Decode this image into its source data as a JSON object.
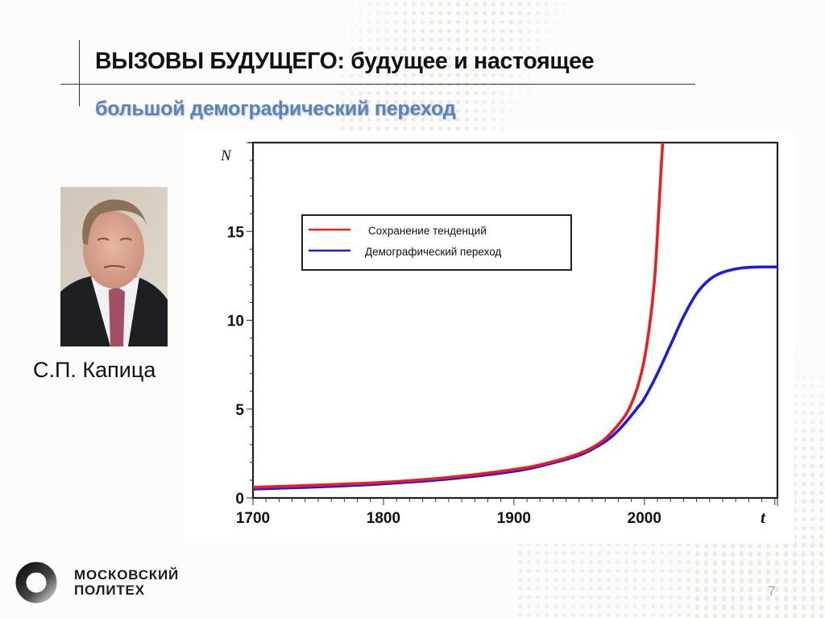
{
  "slide": {
    "title": "ВЫЗОВЫ БУДУЩЕГО: будущее и настоящее",
    "subtitle": "большой демографический переход",
    "portrait_caption": "С.П. Капица",
    "page_number": "7",
    "colors": {
      "title": "#111111",
      "subtitle": "#5a84b8",
      "series_red": "#ee1c1c",
      "series_blue": "#1a1aee"
    }
  },
  "logo": {
    "line1": "московский",
    "line2": "политех",
    "icon": "ring-logo-icon"
  },
  "chart_data": {
    "type": "line",
    "title": "",
    "xlabel": "t",
    "ylabel": "N",
    "xlim": [
      1700,
      2102
    ],
    "ylim": [
      0,
      20
    ],
    "x_ticks": [
      "1700",
      "1800",
      "1900",
      "2000"
    ],
    "y_ticks": [
      "0",
      "5",
      "10",
      "15"
    ],
    "grid": false,
    "legend_position": "upper-left-inside",
    "legend": [
      "Сохранение тенденций",
      "Демографический переход"
    ],
    "series": [
      {
        "name": "Сохранение тенденций",
        "color": "#ee1c1c",
        "x": [
          1700,
          1750,
          1800,
          1850,
          1900,
          1925,
          1950,
          1965,
          1975,
          1985,
          1990,
          1995,
          2000,
          2005,
          2008,
          2010,
          2012,
          2014
        ],
        "values": [
          0.6,
          0.72,
          0.88,
          1.15,
          1.6,
          1.95,
          2.5,
          3.05,
          3.7,
          4.6,
          5.3,
          6.3,
          7.8,
          10.3,
          12.5,
          14.8,
          17.5,
          20.0
        ]
      },
      {
        "name": "Демографический переход",
        "color": "#1a1aee",
        "x": [
          1700,
          1750,
          1800,
          1850,
          1900,
          1925,
          1950,
          1965,
          1975,
          1985,
          1995,
          2000,
          2010,
          2020,
          2030,
          2040,
          2050,
          2060,
          2075,
          2090,
          2102
        ],
        "values": [
          0.5,
          0.62,
          0.8,
          1.07,
          1.5,
          1.88,
          2.4,
          2.95,
          3.45,
          4.2,
          5.1,
          5.6,
          7.0,
          8.6,
          10.2,
          11.5,
          12.3,
          12.7,
          12.95,
          13.0,
          13.0
        ]
      }
    ]
  }
}
